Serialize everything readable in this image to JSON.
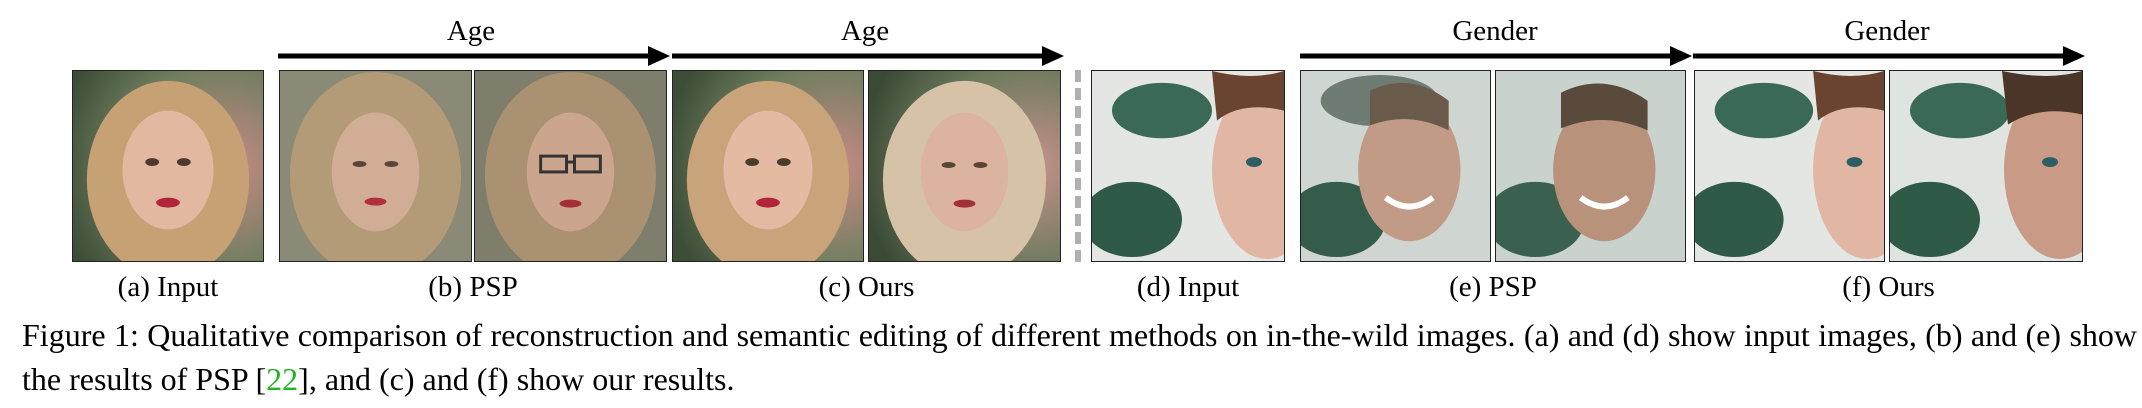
{
  "figure": {
    "arrows": [
      {
        "label": "Age"
      },
      {
        "label": "Age"
      },
      {
        "label": "Gender"
      },
      {
        "label": "Gender"
      }
    ],
    "subcaptions": {
      "a": "(a) Input",
      "b": "(b) PSP",
      "c": "(c) Ours",
      "d": "(d) Input",
      "e": "(e) PSP",
      "f": "(f) Ours"
    },
    "caption": {
      "prefix": "Figure 1: Qualitative comparison of reconstruction and semantic editing of different methods on in-the-wild images. (a) and (d) show input images, (b) and (e) show the results of PSP [",
      "ref": "22",
      "suffix": "], and (c) and (f) show our results."
    }
  }
}
